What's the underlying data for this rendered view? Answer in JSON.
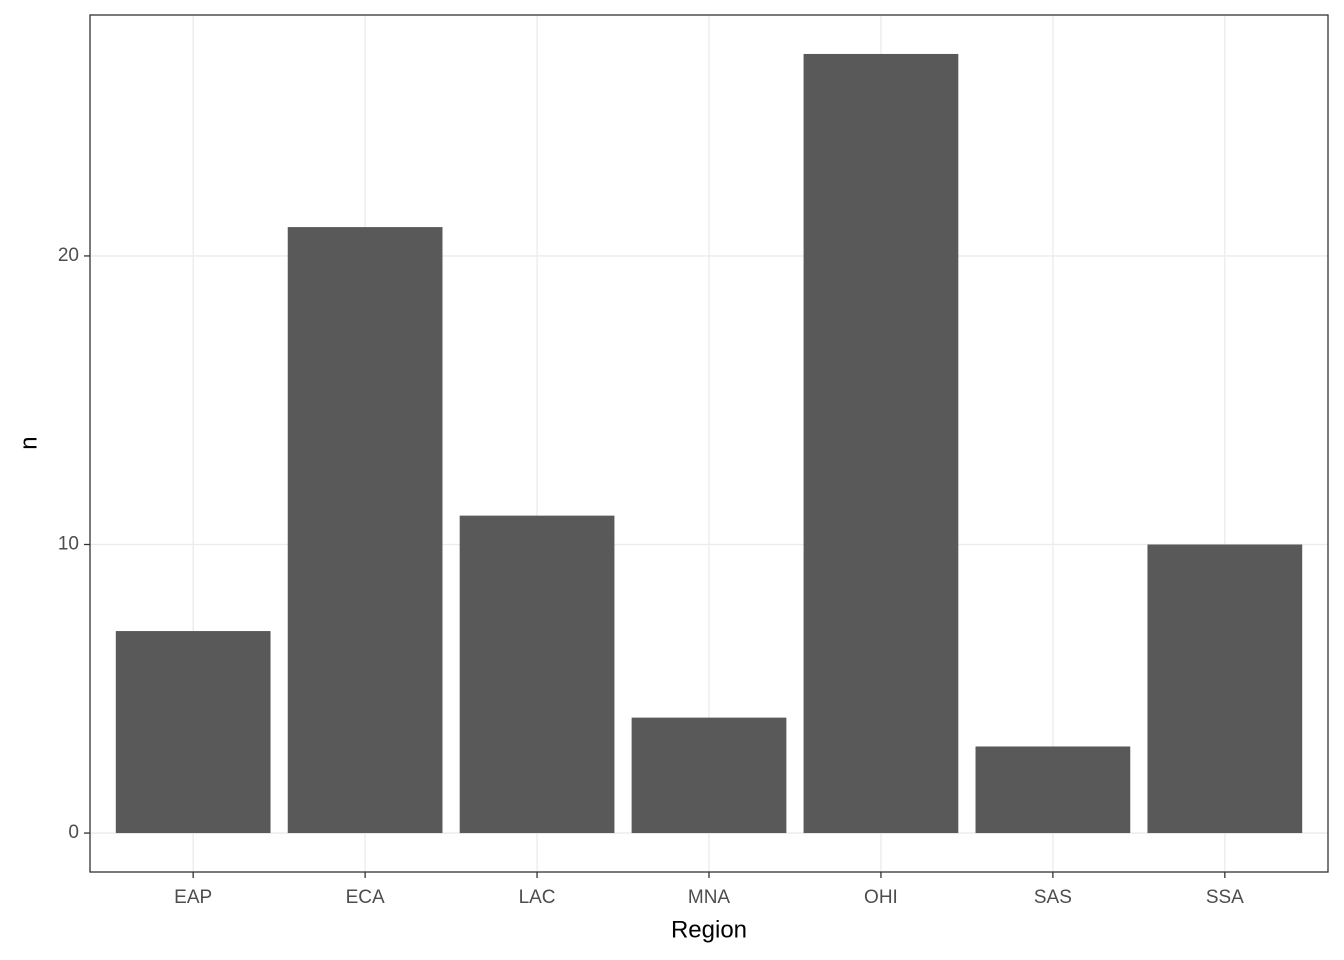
{
  "chart_data": {
    "type": "bar",
    "x_label": "Region",
    "y_label": "n",
    "categories": [
      "EAP",
      "ECA",
      "LAC",
      "MNA",
      "OHI",
      "SAS",
      "SSA"
    ],
    "values": [
      7,
      21,
      11,
      4,
      27,
      3,
      10
    ],
    "color": "#595959",
    "ylim": [
      -1.35,
      28.35
    ],
    "yticks": [
      0,
      10,
      20
    ],
    "grid": true
  }
}
